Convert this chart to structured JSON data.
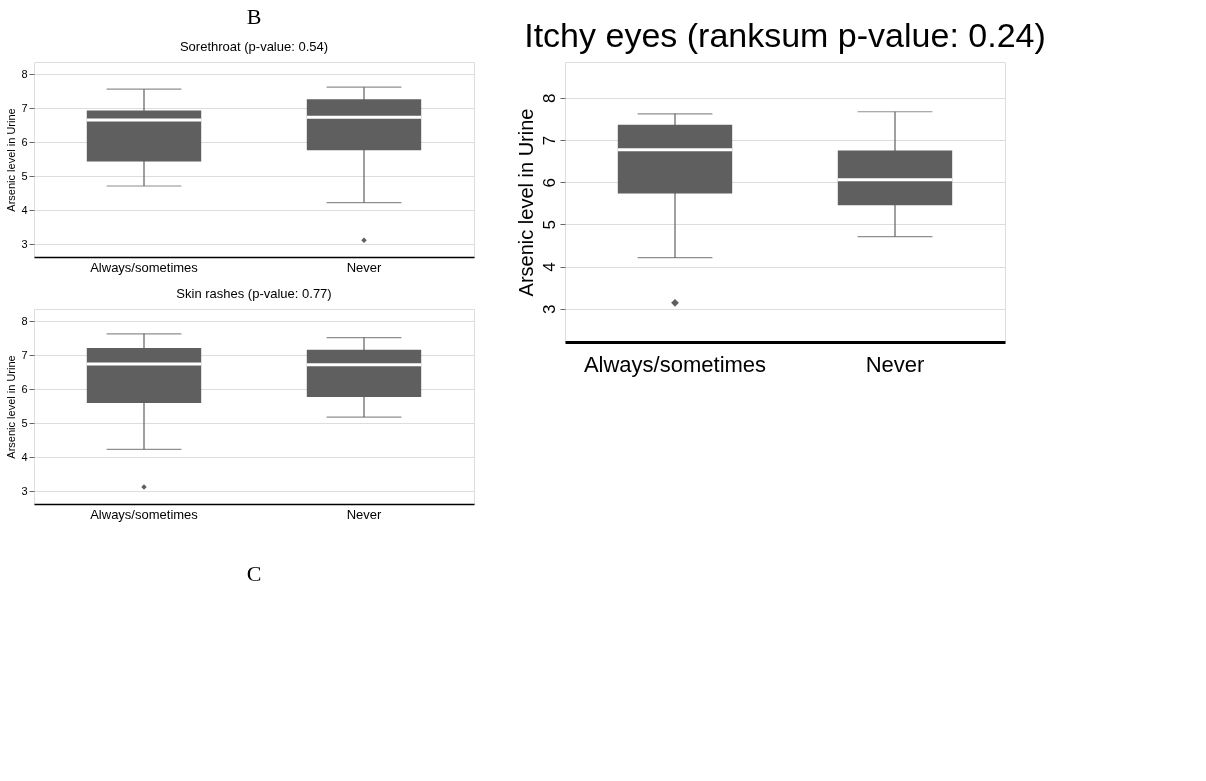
{
  "chart_data": [
    {
      "type": "box",
      "title": "Sorethroat (p-value: 0.54)",
      "ylabel": "Arsenic level in Urine",
      "categories": [
        "Always/sometimes",
        "Never"
      ],
      "series": [
        {
          "color": "#5f5f5f",
          "boxes": [
            {
              "low": 4.71,
              "q1": 5.43,
              "median": 6.65,
              "q3": 6.93,
              "high": 7.56
            },
            {
              "low": 4.22,
              "q1": 5.76,
              "median": 6.73,
              "q3": 7.26,
              "high": 7.62,
              "outliers": [
                3.11
              ]
            }
          ]
        }
      ],
      "ylim": [
        2.62,
        8.36
      ],
      "yticks": [
        3,
        4,
        5,
        6,
        7,
        8
      ],
      "grid": "y",
      "marker": "diamond",
      "annotations": [
        "B"
      ]
    },
    {
      "type": "box",
      "title": "Skin rashes (p-value: 0.77)",
      "ylabel": "Arsenic level in Urine",
      "categories": [
        "Always/sometimes",
        "Never"
      ],
      "series": [
        {
          "color": "#5f5f5f",
          "boxes": [
            {
              "low": 4.23,
              "q1": 5.59,
              "median": 6.74,
              "q3": 7.21,
              "high": 7.63,
              "outliers": [
                3.12
              ]
            },
            {
              "low": 5.18,
              "q1": 5.77,
              "median": 6.72,
              "q3": 7.16,
              "high": 7.52
            }
          ]
        }
      ],
      "ylim": [
        2.62,
        8.36
      ],
      "yticks": [
        3,
        4,
        5,
        6,
        7,
        8
      ],
      "grid": "y",
      "marker": "diamond",
      "annotations": [
        "C"
      ]
    },
    {
      "type": "box",
      "title": "Itchy eyes (ranksum p-value: 0.24)",
      "ylabel": "Arsenic level in Urine",
      "categories": [
        "Always/sometimes",
        "Never"
      ],
      "series": [
        {
          "color": "#5f5f5f",
          "boxes": [
            {
              "low": 4.21,
              "q1": 5.73,
              "median": 6.77,
              "q3": 7.36,
              "high": 7.62,
              "outliers": [
                3.14
              ]
            },
            {
              "low": 4.71,
              "q1": 5.45,
              "median": 6.06,
              "q3": 6.75,
              "high": 7.67
            }
          ]
        }
      ],
      "ylim": [
        2.21,
        8.85
      ],
      "yticks": [
        3,
        4,
        5,
        6,
        7,
        8
      ],
      "grid": "y",
      "marker": "diamond"
    }
  ]
}
